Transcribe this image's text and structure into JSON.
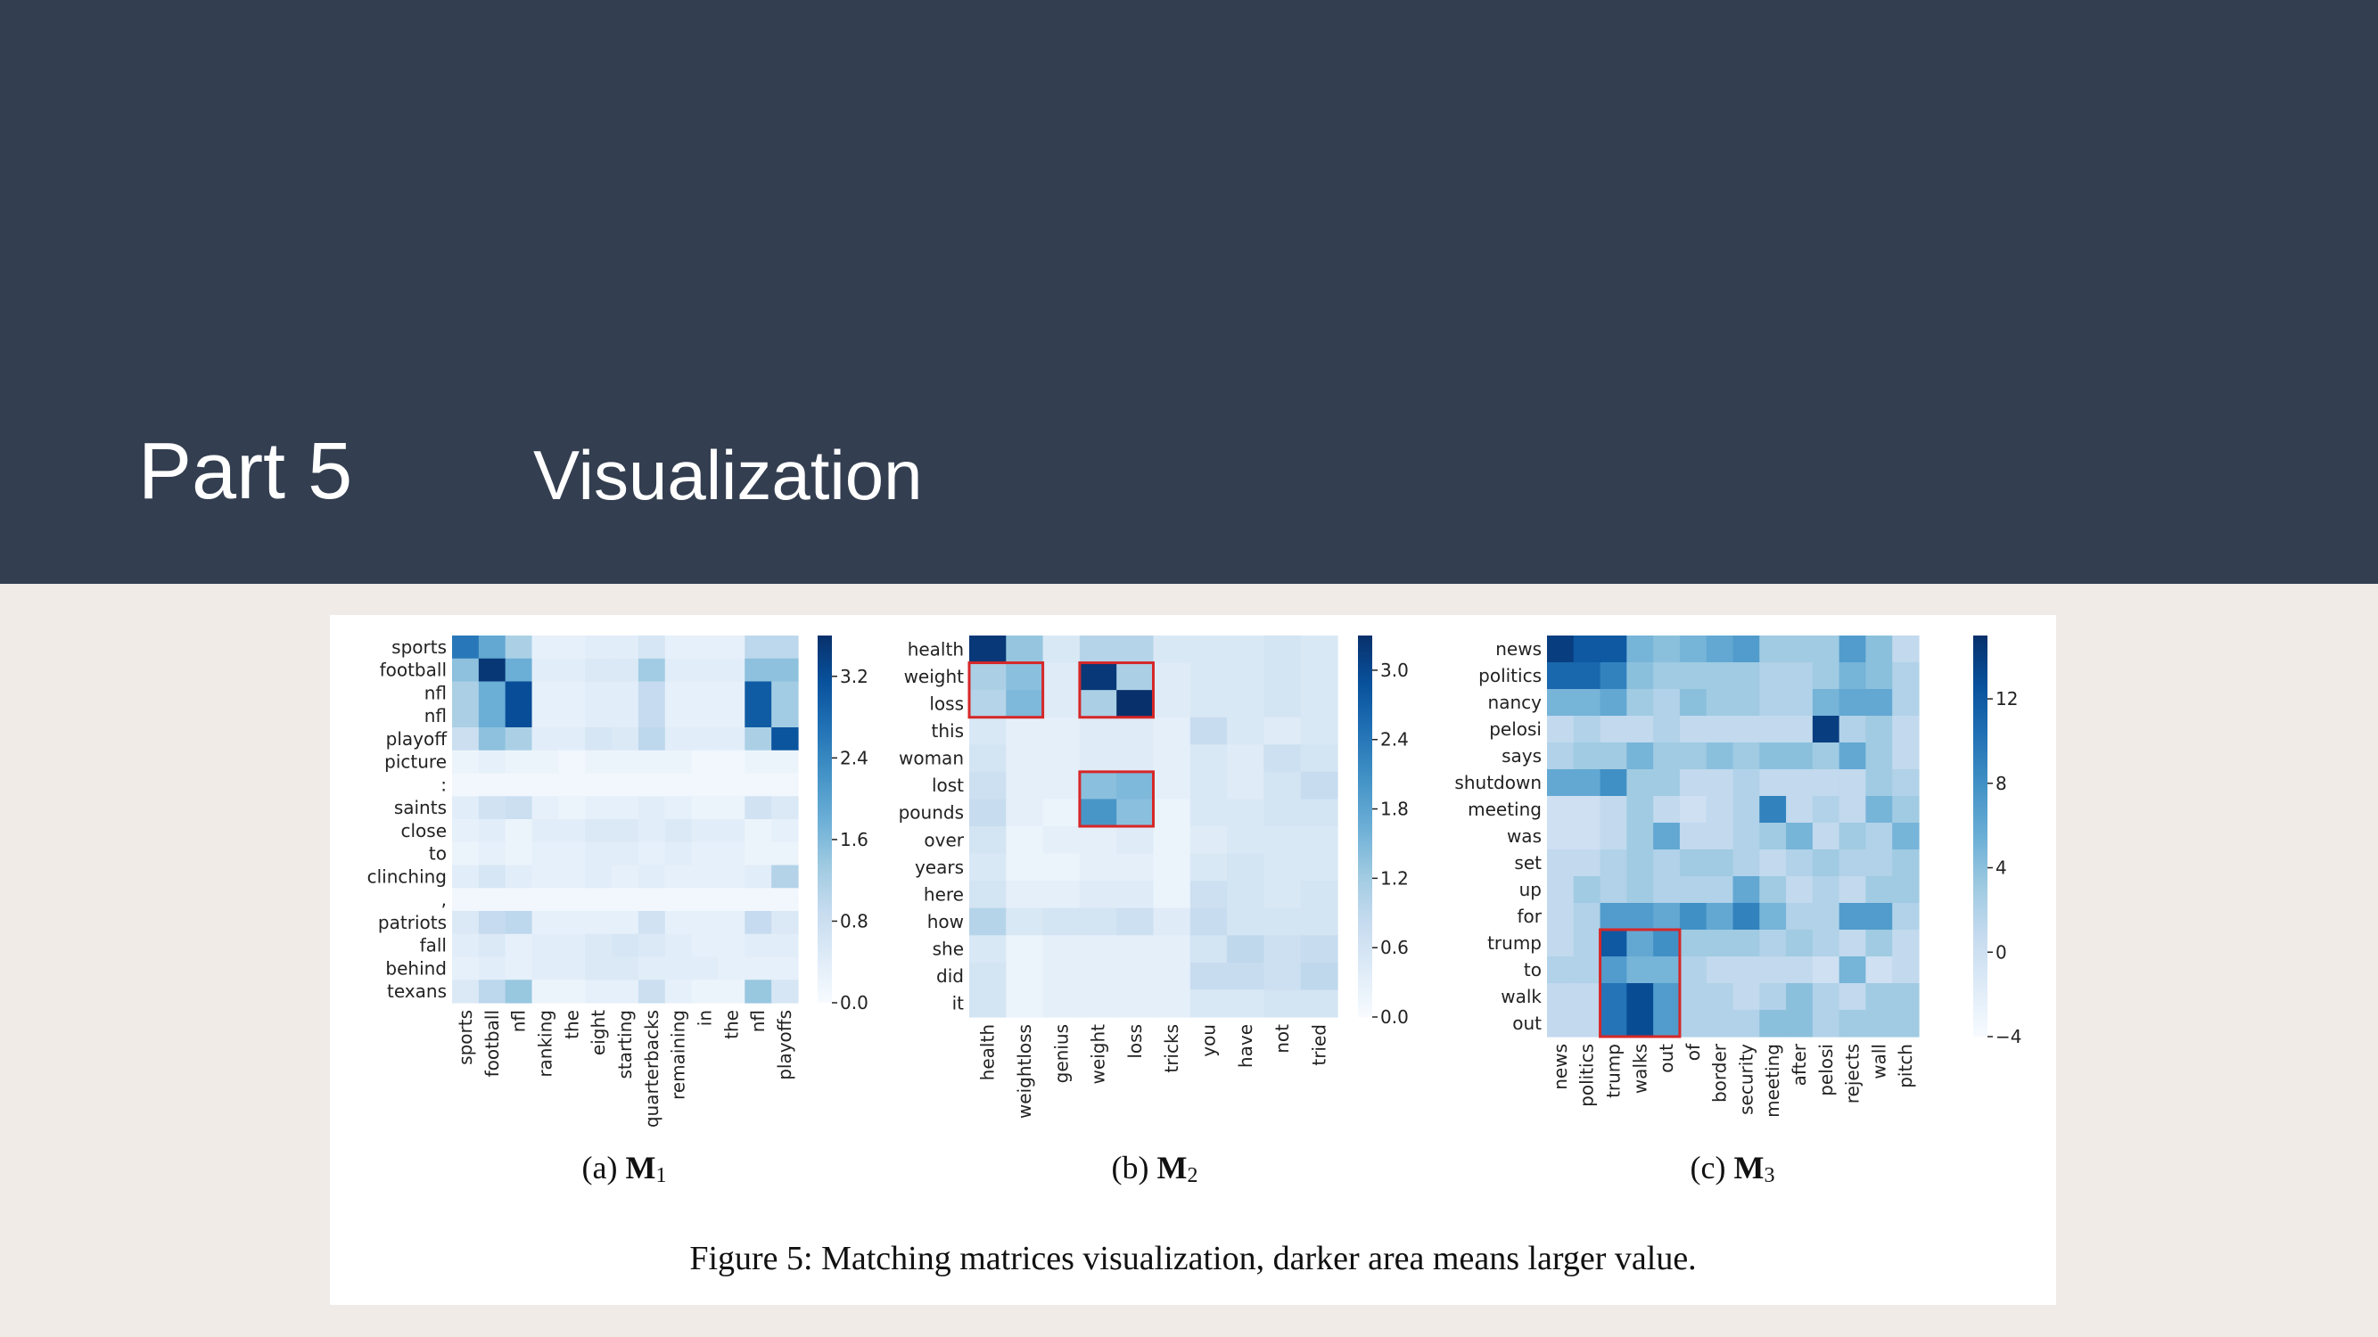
{
  "slide": {
    "part_label": "Part 5",
    "section_title": "Visualization",
    "figure_caption": "Figure 5: Matching matrices visualization, darker area means larger value."
  },
  "colors": {
    "header_bg": "#333e50",
    "page_bg": "#f0ebe6",
    "cmap_low": "#f7fbff",
    "cmap_high": "#08306b",
    "highlight_box": "#d62728"
  },
  "chart_data": [
    {
      "type": "heatmap",
      "subcaption_prefix": "(a) ",
      "subcaption": "M",
      "subcaption_sub": "1",
      "rows": [
        "sports",
        "football",
        "nfl",
        "nfl",
        "playoff",
        "picture",
        ":",
        "saints",
        "close",
        "to",
        "clinching",
        ",",
        "patriots",
        "fall",
        "behind",
        "texans"
      ],
      "cols": [
        "sports",
        "football",
        "nfl",
        "ranking",
        "the",
        "eight",
        "starting",
        "quarterbacks",
        "remaining",
        "in",
        "the",
        "nfl",
        "playoffs"
      ],
      "colorbar_ticks": [
        "0.0",
        "0.8",
        "1.6",
        "2.4",
        "3.2"
      ],
      "vmin": 0,
      "vmax": 3.6,
      "values": [
        [
          2.6,
          1.9,
          1.2,
          0.3,
          0.3,
          0.4,
          0.4,
          0.6,
          0.3,
          0.3,
          0.3,
          1.0,
          1.0
        ],
        [
          1.5,
          3.5,
          1.8,
          0.4,
          0.4,
          0.5,
          0.5,
          1.3,
          0.4,
          0.4,
          0.4,
          1.5,
          1.5
        ],
        [
          1.2,
          1.8,
          3.2,
          0.3,
          0.3,
          0.4,
          0.4,
          0.9,
          0.3,
          0.3,
          0.3,
          3.0,
          1.3
        ],
        [
          1.2,
          1.8,
          3.2,
          0.3,
          0.3,
          0.4,
          0.4,
          0.9,
          0.3,
          0.3,
          0.3,
          3.0,
          1.3
        ],
        [
          0.8,
          1.5,
          1.2,
          0.4,
          0.4,
          0.6,
          0.5,
          1.0,
          0.4,
          0.4,
          0.4,
          1.2,
          3.1
        ],
        [
          0.2,
          0.3,
          0.2,
          0.2,
          0.1,
          0.2,
          0.2,
          0.2,
          0.2,
          0.1,
          0.1,
          0.2,
          0.2
        ],
        [
          0.1,
          0.1,
          0.1,
          0.1,
          0.1,
          0.1,
          0.1,
          0.1,
          0.1,
          0.1,
          0.1,
          0.1,
          0.1
        ],
        [
          0.4,
          0.7,
          0.8,
          0.3,
          0.2,
          0.3,
          0.3,
          0.4,
          0.3,
          0.2,
          0.2,
          0.7,
          0.5
        ],
        [
          0.3,
          0.4,
          0.2,
          0.4,
          0.4,
          0.5,
          0.5,
          0.4,
          0.5,
          0.4,
          0.4,
          0.2,
          0.3
        ],
        [
          0.2,
          0.3,
          0.2,
          0.3,
          0.3,
          0.4,
          0.4,
          0.3,
          0.4,
          0.3,
          0.3,
          0.2,
          0.2
        ],
        [
          0.4,
          0.6,
          0.4,
          0.3,
          0.3,
          0.4,
          0.3,
          0.4,
          0.3,
          0.3,
          0.3,
          0.4,
          1.1
        ],
        [
          0.1,
          0.1,
          0.1,
          0.1,
          0.1,
          0.1,
          0.1,
          0.1,
          0.1,
          0.1,
          0.1,
          0.1,
          0.1
        ],
        [
          0.5,
          0.9,
          1.0,
          0.3,
          0.3,
          0.3,
          0.3,
          0.7,
          0.3,
          0.3,
          0.3,
          0.9,
          0.5
        ],
        [
          0.4,
          0.5,
          0.3,
          0.4,
          0.4,
          0.5,
          0.6,
          0.5,
          0.4,
          0.3,
          0.3,
          0.4,
          0.4
        ],
        [
          0.3,
          0.4,
          0.3,
          0.4,
          0.4,
          0.5,
          0.5,
          0.4,
          0.4,
          0.4,
          0.3,
          0.3,
          0.3
        ],
        [
          0.5,
          1.0,
          1.4,
          0.2,
          0.2,
          0.3,
          0.3,
          0.8,
          0.3,
          0.2,
          0.2,
          1.4,
          0.6
        ]
      ],
      "highlight_boxes": []
    },
    {
      "type": "heatmap",
      "subcaption_prefix": "(b) ",
      "subcaption": "M",
      "subcaption_sub": "2",
      "rows": [
        "health",
        "weight",
        "loss",
        "this",
        "woman",
        "lost",
        "pounds",
        "over",
        "years",
        "here",
        "how",
        "she",
        "did",
        "it"
      ],
      "cols": [
        "health",
        "weightloss",
        "genius",
        "weight",
        "loss",
        "tricks",
        "you",
        "have",
        "not",
        "tried"
      ],
      "colorbar_ticks": [
        "0.0",
        "0.6",
        "1.2",
        "1.8",
        "2.4",
        "3.0"
      ],
      "vmin": 0,
      "vmax": 3.3,
      "values": [
        [
          3.2,
          1.3,
          0.5,
          1.0,
          1.0,
          0.5,
          0.5,
          0.5,
          0.6,
          0.5
        ],
        [
          1.1,
          1.4,
          0.4,
          3.2,
          1.1,
          0.4,
          0.5,
          0.5,
          0.6,
          0.5
        ],
        [
          1.0,
          1.5,
          0.4,
          1.1,
          3.3,
          0.4,
          0.5,
          0.5,
          0.6,
          0.5
        ],
        [
          0.5,
          0.3,
          0.3,
          0.4,
          0.4,
          0.3,
          0.8,
          0.5,
          0.4,
          0.5
        ],
        [
          0.6,
          0.3,
          0.3,
          0.4,
          0.4,
          0.3,
          0.5,
          0.4,
          0.7,
          0.6
        ],
        [
          0.7,
          0.3,
          0.3,
          1.4,
          1.5,
          0.3,
          0.5,
          0.4,
          0.6,
          0.8
        ],
        [
          0.8,
          0.3,
          0.2,
          2.0,
          1.4,
          0.2,
          0.5,
          0.5,
          0.6,
          0.6
        ],
        [
          0.6,
          0.2,
          0.3,
          0.3,
          0.4,
          0.2,
          0.4,
          0.5,
          0.5,
          0.5
        ],
        [
          0.5,
          0.2,
          0.2,
          0.3,
          0.3,
          0.2,
          0.5,
          0.6,
          0.5,
          0.5
        ],
        [
          0.6,
          0.3,
          0.3,
          0.4,
          0.4,
          0.2,
          0.7,
          0.6,
          0.5,
          0.6
        ],
        [
          1.0,
          0.5,
          0.6,
          0.6,
          0.7,
          0.4,
          0.8,
          0.6,
          0.6,
          0.6
        ],
        [
          0.5,
          0.2,
          0.3,
          0.3,
          0.3,
          0.3,
          0.6,
          0.9,
          0.7,
          0.8
        ],
        [
          0.6,
          0.2,
          0.3,
          0.3,
          0.3,
          0.3,
          0.8,
          0.8,
          0.7,
          0.9
        ],
        [
          0.6,
          0.2,
          0.3,
          0.3,
          0.3,
          0.3,
          0.5,
          0.5,
          0.6,
          0.6
        ]
      ],
      "highlight_boxes": [
        {
          "rows": [
            1,
            2
          ],
          "cols": [
            0,
            1
          ]
        },
        {
          "rows": [
            1,
            2
          ],
          "cols": [
            3,
            4
          ]
        },
        {
          "rows": [
            5,
            6
          ],
          "cols": [
            3,
            4
          ]
        }
      ]
    },
    {
      "type": "heatmap",
      "subcaption_prefix": "(c) ",
      "subcaption": "M",
      "subcaption_sub": "3",
      "rows": [
        "news",
        "politics",
        "nancy",
        "pelosi",
        "says",
        "shutdown",
        "meeting",
        "was",
        "set",
        "up",
        "for",
        "trump",
        "to",
        "walk",
        "out"
      ],
      "cols": [
        "news",
        "politics",
        "trump",
        "walks",
        "out",
        "of",
        "border",
        "security",
        "meeting",
        "after",
        "pelosi",
        "rejects",
        "wall",
        "pitch"
      ],
      "colorbar_ticks": [
        "−4",
        "0",
        "4",
        "8",
        "12"
      ],
      "vmin": -4,
      "vmax": 15,
      "values": [
        [
          14,
          12,
          12,
          5,
          4,
          5,
          6,
          7,
          3,
          3,
          3,
          7,
          4,
          1
        ],
        [
          11,
          11,
          9,
          4,
          3,
          3,
          3,
          3,
          2,
          2,
          3,
          5,
          4,
          2
        ],
        [
          5,
          5,
          6,
          3,
          2,
          4,
          3,
          3,
          2,
          2,
          5,
          6,
          6,
          2
        ],
        [
          1,
          2,
          1,
          1,
          2,
          1,
          1,
          1,
          1,
          1,
          14,
          2,
          3,
          1
        ],
        [
          2,
          3,
          3,
          5,
          3,
          3,
          4,
          3,
          4,
          4,
          3,
          6,
          3,
          1
        ],
        [
          6,
          6,
          8,
          3,
          3,
          1,
          1,
          2,
          1,
          1,
          1,
          1,
          3,
          2
        ],
        [
          0,
          0,
          1,
          3,
          1,
          0,
          1,
          2,
          9,
          1,
          2,
          1,
          5,
          3
        ],
        [
          0,
          0,
          1,
          3,
          6,
          1,
          1,
          2,
          3,
          5,
          1,
          3,
          2,
          5
        ],
        [
          1,
          1,
          2,
          3,
          2,
          3,
          3,
          2,
          1,
          2,
          3,
          2,
          2,
          3
        ],
        [
          1,
          3,
          2,
          3,
          2,
          2,
          2,
          6,
          3,
          1,
          2,
          1,
          3,
          3
        ],
        [
          1,
          2,
          7,
          7,
          6,
          8,
          6,
          9,
          5,
          2,
          2,
          7,
          7,
          2
        ],
        [
          1,
          2,
          12,
          6,
          8,
          3,
          3,
          3,
          2,
          3,
          2,
          1,
          3,
          1
        ],
        [
          2,
          2,
          7,
          5,
          5,
          2,
          1,
          1,
          1,
          1,
          0,
          5,
          0,
          1
        ],
        [
          1,
          1,
          10,
          13,
          7,
          2,
          2,
          1,
          2,
          4,
          2,
          1,
          3,
          3
        ],
        [
          1,
          1,
          10,
          13,
          7,
          2,
          2,
          2,
          4,
          4,
          2,
          3,
          3,
          3
        ]
      ],
      "highlight_boxes": [
        {
          "rows": [
            11,
            14
          ],
          "cols": [
            2,
            4
          ]
        }
      ]
    }
  ]
}
